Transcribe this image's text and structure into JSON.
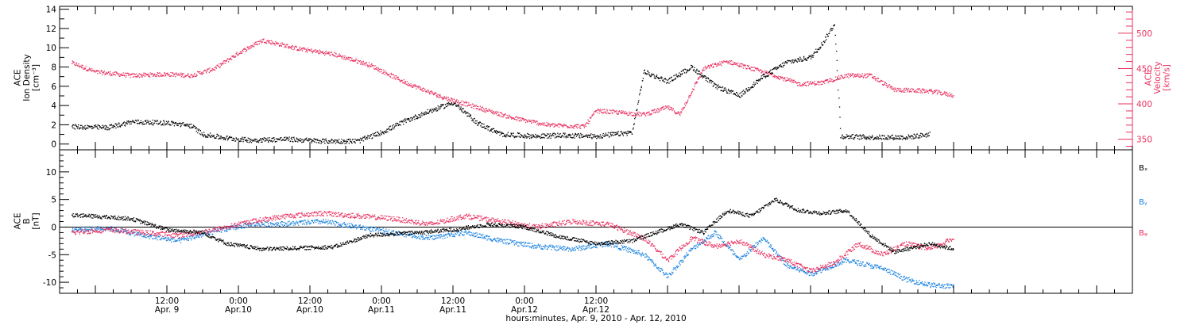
{
  "chart_data": [
    {
      "type": "scatter",
      "panel": "top",
      "ylabel_lines": [
        "ACE",
        "Ion Density",
        "[cm⁻³]"
      ],
      "y2label_lines": [
        "ACE",
        "Velocity",
        "[km/s]"
      ],
      "ylim": [
        -0.6,
        14.3
      ],
      "y2lim": [
        335,
        538
      ],
      "yticks": [
        "0",
        "2",
        "4",
        "6",
        "8",
        "10",
        "12",
        "14"
      ],
      "y2ticks": [
        "350",
        "400",
        "450",
        "500"
      ],
      "colors": {
        "density": "#000000",
        "velocity": "#e8305f"
      },
      "series": [
        {
          "axis": "left",
          "points": [
            [
              "2010-04-08T20:00",
              1.8
            ],
            [
              "2010-04-09T02:00",
              1.7
            ],
            [
              "2010-04-09T06:00",
              2.3
            ],
            [
              "2010-04-09T12:00",
              2.2
            ],
            [
              "2010-04-09T16:00",
              1.9
            ],
            [
              "2010-04-09T18:00",
              1.0
            ],
            [
              "2010-04-09T22:00",
              0.6
            ],
            [
              "2010-04-10T02:00",
              0.4
            ],
            [
              "2010-04-10T08:00",
              0.5
            ],
            [
              "2010-04-10T14:00",
              0.3
            ],
            [
              "2010-04-10T20:00",
              0.3
            ],
            [
              "2010-04-11T00:00",
              1.2
            ],
            [
              "2010-04-11T04:00",
              2.4
            ],
            [
              "2010-04-11T08:00",
              3.4
            ],
            [
              "2010-04-11T12:00",
              4.3
            ],
            [
              "2010-04-11T16:00",
              2.2
            ],
            [
              "2010-04-11T20:00",
              1.0
            ],
            [
              "2010-04-12T02:00",
              0.8
            ],
            [
              "2010-04-12T06:00",
              0.9
            ],
            [
              "2010-04-12T12:00",
              0.8
            ],
            [
              "2010-04-12T18:00",
              1.2
            ],
            [
              "2010-04-12T20:00",
              7.5
            ],
            [
              "2010-04-13T00:00",
              6.5
            ],
            [
              "2010-04-13T04:00",
              8.0
            ],
            [
              "2010-04-13T08:00",
              6.0
            ],
            [
              "2010-04-13T12:00",
              5.0
            ],
            [
              "2010-04-13T16:00",
              7.0
            ],
            [
              "2010-04-13T20:00",
              8.5
            ],
            [
              "2010-04-14T00:00",
              9.0
            ],
            [
              "2010-04-14T02:00",
              10.5
            ],
            [
              "2010-04-14T04:00",
              12.5
            ],
            [
              "2010-04-14T05:00",
              0.8
            ],
            [
              "2010-04-14T10:00",
              0.7
            ],
            [
              "2010-04-14T16:00",
              0.7
            ],
            [
              "2010-04-14T20:00",
              1.0
            ]
          ]
        },
        {
          "axis": "right",
          "points": [
            [
              "2010-04-08T20:00",
              458
            ],
            [
              "2010-04-09T00:00",
              445
            ],
            [
              "2010-04-09T06:00",
              440
            ],
            [
              "2010-04-09T12:00",
              442
            ],
            [
              "2010-04-09T16:00",
              440
            ],
            [
              "2010-04-09T20:00",
              450
            ],
            [
              "2010-04-10T00:00",
              472
            ],
            [
              "2010-04-10T04:00",
              490
            ],
            [
              "2010-04-10T10:00",
              478
            ],
            [
              "2010-04-10T16:00",
              470
            ],
            [
              "2010-04-10T22:00",
              455
            ],
            [
              "2010-04-11T04:00",
              430
            ],
            [
              "2010-04-11T10:00",
              410
            ],
            [
              "2010-04-11T16:00",
              395
            ],
            [
              "2010-04-11T22:00",
              380
            ],
            [
              "2010-04-12T04:00",
              370
            ],
            [
              "2010-04-12T10:00",
              368
            ],
            [
              "2010-04-12T12:00",
              390
            ],
            [
              "2010-04-12T20:00",
              385
            ],
            [
              "2010-04-13T00:00",
              395
            ],
            [
              "2010-04-13T02:00",
              385
            ],
            [
              "2010-04-13T06:00",
              450
            ],
            [
              "2010-04-13T10:00",
              460
            ],
            [
              "2010-04-13T14:00",
              450
            ],
            [
              "2010-04-13T18:00",
              440
            ],
            [
              "2010-04-13T22:00",
              428
            ],
            [
              "2010-04-14T02:00",
              430
            ],
            [
              "2010-04-14T06:00",
              440
            ],
            [
              "2010-04-14T10:00",
              440
            ],
            [
              "2010-04-14T14:00",
              420
            ],
            [
              "2010-04-14T20:00",
              418
            ],
            [
              "2010-04-15T00:00",
              412
            ]
          ]
        }
      ]
    },
    {
      "type": "scatter",
      "panel": "bottom",
      "ylabel_lines": [
        "ACE",
        "B",
        "[nT]"
      ],
      "ylim": [
        -12,
        14
      ],
      "yticks": [
        "-10",
        "-5",
        "0",
        "5",
        "10"
      ],
      "zero_line": true,
      "legend": [
        {
          "name": "Bₓ",
          "color": "#000000"
        },
        {
          "name": "Bᵧ",
          "color": "#1a82e0"
        },
        {
          "name": "Bᵩ",
          "color": "#e8305f"
        }
      ],
      "series": [
        {
          "name": "Bₓ",
          "color": "#000000",
          "points": [
            [
              "2010-04-08T20:00",
              2.2
            ],
            [
              "2010-04-09T06:00",
              1.5
            ],
            [
              "2010-04-09T12:00",
              -0.5
            ],
            [
              "2010-04-09T18:00",
              -1.0
            ],
            [
              "2010-04-09T22:00",
              -3.0
            ],
            [
              "2010-04-10T04:00",
              -4.0
            ],
            [
              "2010-04-10T10:00",
              -3.8
            ],
            [
              "2010-04-10T16:00",
              -3.6
            ],
            [
              "2010-04-10T22:00",
              -1.5
            ],
            [
              "2010-04-11T06:00",
              -1.0
            ],
            [
              "2010-04-11T12:00",
              -0.5
            ],
            [
              "2010-04-11T18:00",
              0.5
            ],
            [
              "2010-04-12T00:00",
              0.0
            ],
            [
              "2010-04-12T06:00",
              -1.8
            ],
            [
              "2010-04-12T12:00",
              -3.0
            ],
            [
              "2010-04-12T18:00",
              -2.5
            ],
            [
              "2010-04-12T22:00",
              -1.0
            ],
            [
              "2010-04-13T02:00",
              0.5
            ],
            [
              "2010-04-13T06:00",
              -1.0
            ],
            [
              "2010-04-13T10:00",
              3.0
            ],
            [
              "2010-04-13T14:00",
              2.0
            ],
            [
              "2010-04-13T18:00",
              5.0
            ],
            [
              "2010-04-13T22:00",
              3.0
            ],
            [
              "2010-04-14T02:00",
              2.5
            ],
            [
              "2010-04-14T06:00",
              3.0
            ],
            [
              "2010-04-14T10:00",
              -1.5
            ],
            [
              "2010-04-14T14:00",
              -4.5
            ],
            [
              "2010-04-14T20:00",
              -3.0
            ],
            [
              "2010-04-15T00:00",
              -4.0
            ]
          ]
        },
        {
          "name": "Bᵧ",
          "color": "#1a82e0",
          "points": [
            [
              "2010-04-08T20:00",
              -0.5
            ],
            [
              "2010-04-09T02:00",
              -0.2
            ],
            [
              "2010-04-09T08:00",
              -1.5
            ],
            [
              "2010-04-09T14:00",
              -2.5
            ],
            [
              "2010-04-09T20:00",
              -0.8
            ],
            [
              "2010-04-10T02:00",
              0.5
            ],
            [
              "2010-04-10T08:00",
              0.6
            ],
            [
              "2010-04-10T14:00",
              1.0
            ],
            [
              "2010-04-10T20:00",
              0.0
            ],
            [
              "2010-04-11T02:00",
              -1.0
            ],
            [
              "2010-04-11T08:00",
              -2.0
            ],
            [
              "2010-04-11T14:00",
              -1.0
            ],
            [
              "2010-04-11T20:00",
              -2.5
            ],
            [
              "2010-04-12T02:00",
              -3.5
            ],
            [
              "2010-04-12T08:00",
              -4.0
            ],
            [
              "2010-04-12T14:00",
              -3.0
            ],
            [
              "2010-04-12T20:00",
              -5.0
            ],
            [
              "2010-04-13T00:00",
              -9.0
            ],
            [
              "2010-04-13T04:00",
              -4.0
            ],
            [
              "2010-04-13T08:00",
              -1.0
            ],
            [
              "2010-04-13T12:00",
              -6.0
            ],
            [
              "2010-04-13T16:00",
              -2.0
            ],
            [
              "2010-04-13T20:00",
              -7.0
            ],
            [
              "2010-04-14T00:00",
              -8.5
            ],
            [
              "2010-04-14T06:00",
              -6.0
            ],
            [
              "2010-04-14T12:00",
              -7.5
            ],
            [
              "2010-04-14T16:00",
              -9.5
            ],
            [
              "2010-04-14T20:00",
              -10.5
            ],
            [
              "2010-04-15T00:00",
              -10.8
            ]
          ]
        },
        {
          "name": "Bᵩ",
          "color": "#e8305f",
          "points": [
            [
              "2010-04-08T20:00",
              -1.0
            ],
            [
              "2010-04-09T02:00",
              -0.5
            ],
            [
              "2010-04-09T08:00",
              -1.0
            ],
            [
              "2010-04-09T14:00",
              -1.5
            ],
            [
              "2010-04-09T20:00",
              -0.5
            ],
            [
              "2010-04-10T02:00",
              1.0
            ],
            [
              "2010-04-10T08:00",
              2.0
            ],
            [
              "2010-04-10T14:00",
              2.5
            ],
            [
              "2010-04-10T20:00",
              2.0
            ],
            [
              "2010-04-11T02:00",
              1.5
            ],
            [
              "2010-04-11T08:00",
              0.5
            ],
            [
              "2010-04-11T14:00",
              2.0
            ],
            [
              "2010-04-11T20:00",
              1.0
            ],
            [
              "2010-04-12T02:00",
              0.0
            ],
            [
              "2010-04-12T08:00",
              1.0
            ],
            [
              "2010-04-12T14:00",
              0.5
            ],
            [
              "2010-04-12T20:00",
              -2.0
            ],
            [
              "2010-04-13T00:00",
              -6.0
            ],
            [
              "2010-04-13T04:00",
              -2.0
            ],
            [
              "2010-04-13T08:00",
              -3.5
            ],
            [
              "2010-04-13T12:00",
              -2.5
            ],
            [
              "2010-04-13T16:00",
              -5.0
            ],
            [
              "2010-04-13T20:00",
              -6.0
            ],
            [
              "2010-04-14T00:00",
              -8.0
            ],
            [
              "2010-04-14T04:00",
              -6.5
            ],
            [
              "2010-04-14T08:00",
              -3.0
            ],
            [
              "2010-04-14T12:00",
              -5.0
            ],
            [
              "2010-04-14T16:00",
              -3.0
            ],
            [
              "2010-04-14T20:00",
              -4.0
            ],
            [
              "2010-04-15T00:00",
              -2.0
            ]
          ]
        }
      ]
    }
  ],
  "x_axis": {
    "start": "2010-04-08T18:00",
    "end": "2010-04-16T06:00",
    "ticks": [
      {
        "t": "2010-04-09T12:00",
        "line1": "12:00",
        "line2": "Apr. 9"
      },
      {
        "t": "2010-04-10T00:00",
        "line1": "0:00",
        "line2": "Apr.10"
      },
      {
        "t": "2010-04-10T12:00",
        "line1": "12:00",
        "line2": "Apr.10"
      },
      {
        "t": "2010-04-11T00:00",
        "line1": "0:00",
        "line2": "Apr.11"
      },
      {
        "t": "2010-04-11T12:00",
        "line1": "12:00",
        "line2": "Apr.11"
      },
      {
        "t": "2010-04-12T00:00",
        "line1": "0:00",
        "line2": "Apr.12"
      },
      {
        "t": "2010-04-12T12:00",
        "line1": "12:00",
        "line2": "Apr.12"
      }
    ],
    "label": "hours:minutes, Apr.  9, 2010 - Apr. 12, 2010"
  }
}
